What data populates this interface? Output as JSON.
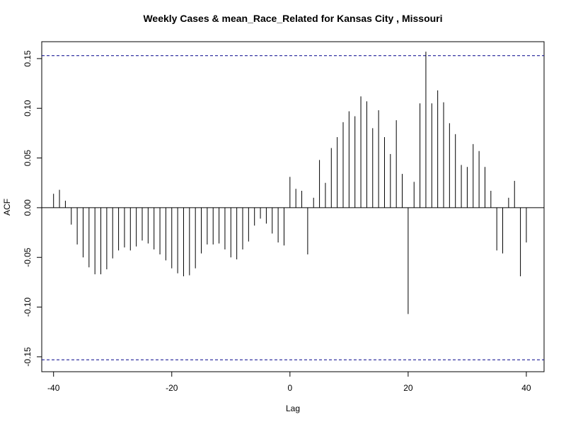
{
  "chart_data": {
    "type": "bar",
    "title": "Weekly Cases & mean_Race_Related for Kansas City , Missouri",
    "xlabel": "Lag",
    "ylabel": "ACF",
    "xlim": [
      -42,
      43
    ],
    "ylim": [
      -0.165,
      0.167
    ],
    "x_ticks": [
      -40,
      -20,
      0,
      20,
      40
    ],
    "y_ticks": [
      -0.15,
      -0.1,
      -0.05,
      0.0,
      0.05,
      0.1,
      0.15
    ],
    "y_tick_labels": [
      "-0.15",
      "-0.10",
      "-0.05",
      "0.00",
      "0.05",
      "0.10",
      "0.15"
    ],
    "x_tick_labels": [
      "-40",
      "-20",
      "0",
      "20",
      "40"
    ],
    "confidence_bound": 0.153,
    "grid": false,
    "colors": {
      "bars": "#000000",
      "bounds": "#00008B",
      "zero_line": "#000000"
    },
    "lags": [
      -40,
      -39,
      -38,
      -37,
      -36,
      -35,
      -34,
      -33,
      -32,
      -31,
      -30,
      -29,
      -28,
      -27,
      -26,
      -25,
      -24,
      -23,
      -22,
      -21,
      -20,
      -19,
      -18,
      -17,
      -16,
      -15,
      -14,
      -13,
      -12,
      -11,
      -10,
      -9,
      -8,
      -7,
      -6,
      -5,
      -4,
      -3,
      -2,
      -1,
      0,
      1,
      2,
      3,
      4,
      5,
      6,
      7,
      8,
      9,
      10,
      11,
      12,
      13,
      14,
      15,
      16,
      17,
      18,
      19,
      20,
      21,
      22,
      23,
      24,
      25,
      26,
      27,
      28,
      29,
      30,
      31,
      32,
      33,
      34,
      35,
      36,
      37,
      38,
      39,
      40
    ],
    "values": [
      0.014,
      0.018,
      0.007,
      -0.017,
      -0.037,
      -0.05,
      -0.06,
      -0.067,
      -0.067,
      -0.062,
      -0.051,
      -0.043,
      -0.04,
      -0.043,
      -0.039,
      -0.033,
      -0.036,
      -0.042,
      -0.047,
      -0.053,
      -0.061,
      -0.066,
      -0.069,
      -0.068,
      -0.061,
      -0.046,
      -0.037,
      -0.037,
      -0.036,
      -0.042,
      -0.05,
      -0.052,
      -0.042,
      -0.034,
      -0.018,
      -0.011,
      -0.016,
      -0.026,
      -0.035,
      -0.038,
      0.031,
      0.019,
      0.017,
      -0.047,
      0.01,
      0.048,
      0.025,
      0.06,
      0.071,
      0.086,
      0.097,
      0.092,
      0.112,
      0.107,
      0.08,
      0.098,
      0.071,
      0.054,
      0.088,
      0.034,
      -0.107,
      0.026,
      0.105,
      0.157,
      0.105,
      0.118,
      0.106,
      0.085,
      0.074,
      0.043,
      0.041,
      0.064,
      0.057,
      0.041,
      0.017,
      -0.043,
      -0.046,
      0.01,
      0.027,
      -0.069,
      -0.035
    ]
  }
}
